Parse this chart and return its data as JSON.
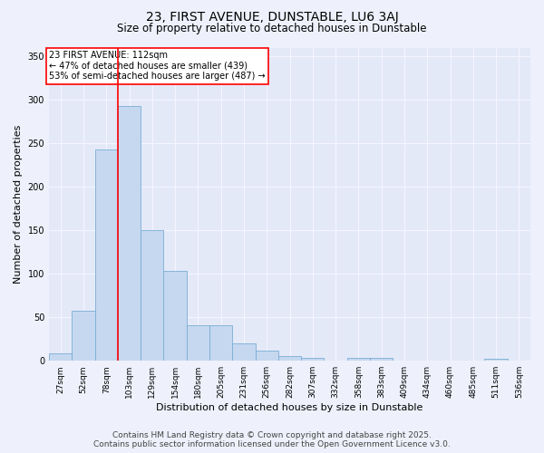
{
  "title": "23, FIRST AVENUE, DUNSTABLE, LU6 3AJ",
  "subtitle": "Size of property relative to detached houses in Dunstable",
  "xlabel": "Distribution of detached houses by size in Dunstable",
  "ylabel": "Number of detached properties",
  "categories": [
    "27sqm",
    "52sqm",
    "78sqm",
    "103sqm",
    "129sqm",
    "154sqm",
    "180sqm",
    "205sqm",
    "231sqm",
    "256sqm",
    "282sqm",
    "307sqm",
    "332sqm",
    "358sqm",
    "383sqm",
    "409sqm",
    "434sqm",
    "460sqm",
    "485sqm",
    "511sqm",
    "536sqm"
  ],
  "values": [
    9,
    58,
    243,
    293,
    150,
    103,
    41,
    41,
    20,
    12,
    5,
    3,
    0,
    3,
    3,
    0,
    0,
    0,
    0,
    2,
    0
  ],
  "bar_color": "#c5d8f0",
  "bar_edge_color": "#7aadd4",
  "annotation_line1": "23 FIRST AVENUE: 112sqm",
  "annotation_line2": "← 47% of detached houses are smaller (439)",
  "annotation_line3": "53% of semi-detached houses are larger (487) →",
  "red_line_index": 3,
  "ylim": [
    0,
    360
  ],
  "yticks": [
    0,
    50,
    100,
    150,
    200,
    250,
    300,
    350
  ],
  "footer_line1": "Contains HM Land Registry data © Crown copyright and database right 2025.",
  "footer_line2": "Contains public sector information licensed under the Open Government Licence v3.0.",
  "bg_color": "#eef1fb",
  "plot_bg_color": "#e4e9f8",
  "grid_color": "#f5f5ff",
  "title_fontsize": 10,
  "subtitle_fontsize": 8.5,
  "axis_label_fontsize": 8,
  "tick_fontsize": 6.5,
  "annotation_fontsize": 7,
  "footer_fontsize": 6.5
}
